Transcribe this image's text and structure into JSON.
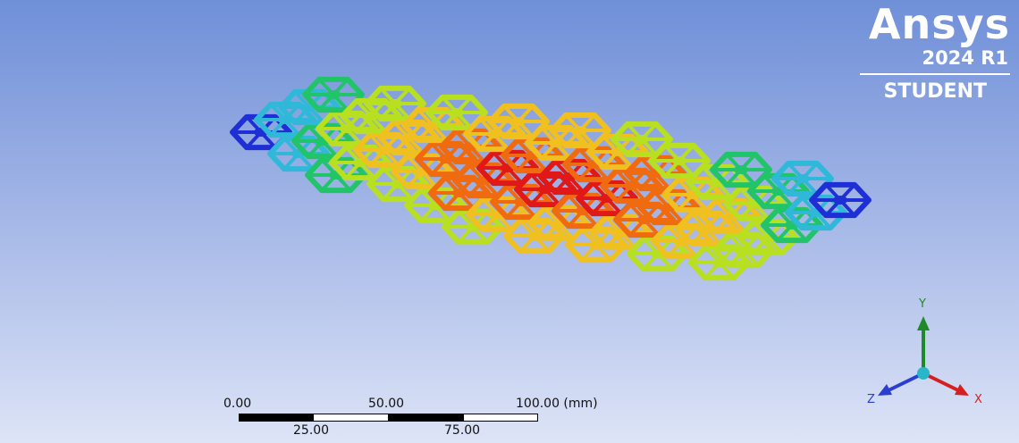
{
  "branding": {
    "product": "Ansys",
    "release": "2024 R1",
    "edition": "STUDENT"
  },
  "scale_bar": {
    "unit": "(mm)",
    "top_labels": [
      "0.00",
      "50.00",
      "100.00 (mm)"
    ],
    "bottom_labels": [
      "25.00",
      "75.00"
    ]
  },
  "triad": {
    "x_label": "X",
    "y_label": "Y",
    "z_label": "Z",
    "colors": {
      "x": "#d42020",
      "y": "#1f8a2a",
      "z": "#2a3fd0",
      "center": "#29b6c8"
    }
  },
  "model": {
    "description_colors": [
      "#1f2fd6",
      "#2fb8d8",
      "#22c46a",
      "#b8e020",
      "#f0c020",
      "#f06a10",
      "#e01818"
    ]
  }
}
